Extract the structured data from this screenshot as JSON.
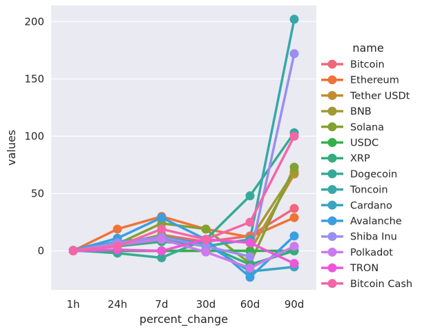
{
  "chart_data": {
    "type": "line",
    "x": [
      "1h",
      "24h",
      "7d",
      "30d",
      "60d",
      "90d"
    ],
    "xlabel": "percent_change",
    "ylabel": "values",
    "ylim": [
      -34,
      214
    ],
    "yticks": [
      0,
      50,
      100,
      150,
      200
    ],
    "grid": true,
    "legend_title": "name",
    "legend_position": "right",
    "series": [
      {
        "name": "Bitcoin",
        "color": "#f0667a",
        "values": [
          0.3,
          5,
          14,
          8,
          13,
          37
        ]
      },
      {
        "name": "Ethereum",
        "color": "#ee7338",
        "values": [
          0.1,
          19,
          30,
          19,
          12,
          29
        ]
      },
      {
        "name": "Tether USDt",
        "color": "#c08e31",
        "values": [
          0,
          0,
          0,
          0,
          0,
          67
        ]
      },
      {
        "name": "BNB",
        "color": "#a09a31",
        "values": [
          0.2,
          4,
          14,
          4,
          10,
          69
        ]
      },
      {
        "name": "Solana",
        "color": "#82a131",
        "values": [
          0.5,
          6,
          24,
          19,
          -11,
          73
        ]
      },
      {
        "name": "USDC",
        "color": "#33b049",
        "values": [
          0,
          0,
          0,
          0,
          0,
          0
        ]
      },
      {
        "name": "XRP",
        "color": "#35ac7c",
        "values": [
          0.3,
          4,
          8,
          5,
          -12,
          0
        ]
      },
      {
        "name": "Dogecoin",
        "color": "#36aa96",
        "values": [
          0.4,
          -2,
          -6,
          10,
          48,
          103
        ]
      },
      {
        "name": "Toncoin",
        "color": "#37a8a9",
        "values": [
          0.1,
          8,
          10,
          4,
          10,
          202
        ]
      },
      {
        "name": "Cardano",
        "color": "#39a5c0",
        "values": [
          0.3,
          8,
          12,
          6,
          -18,
          -14
        ]
      },
      {
        "name": "Avalanche",
        "color": "#3b9ee1",
        "values": [
          0.4,
          11,
          29,
          10,
          -23,
          13
        ]
      },
      {
        "name": "Shiba Inu",
        "color": "#9a8ef0",
        "values": [
          0.2,
          7,
          12,
          4,
          -5,
          172
        ]
      },
      {
        "name": "Polkadot",
        "color": "#cc7aef",
        "values": [
          0.1,
          5,
          10,
          -1,
          -15,
          4
        ]
      },
      {
        "name": "TRON",
        "color": "#ec57d9",
        "values": [
          0,
          1,
          0,
          10,
          7,
          -11
        ]
      },
      {
        "name": "Bitcoin Cash",
        "color": "#f565a7",
        "values": [
          0.2,
          4,
          19,
          10,
          25,
          100
        ]
      }
    ]
  }
}
